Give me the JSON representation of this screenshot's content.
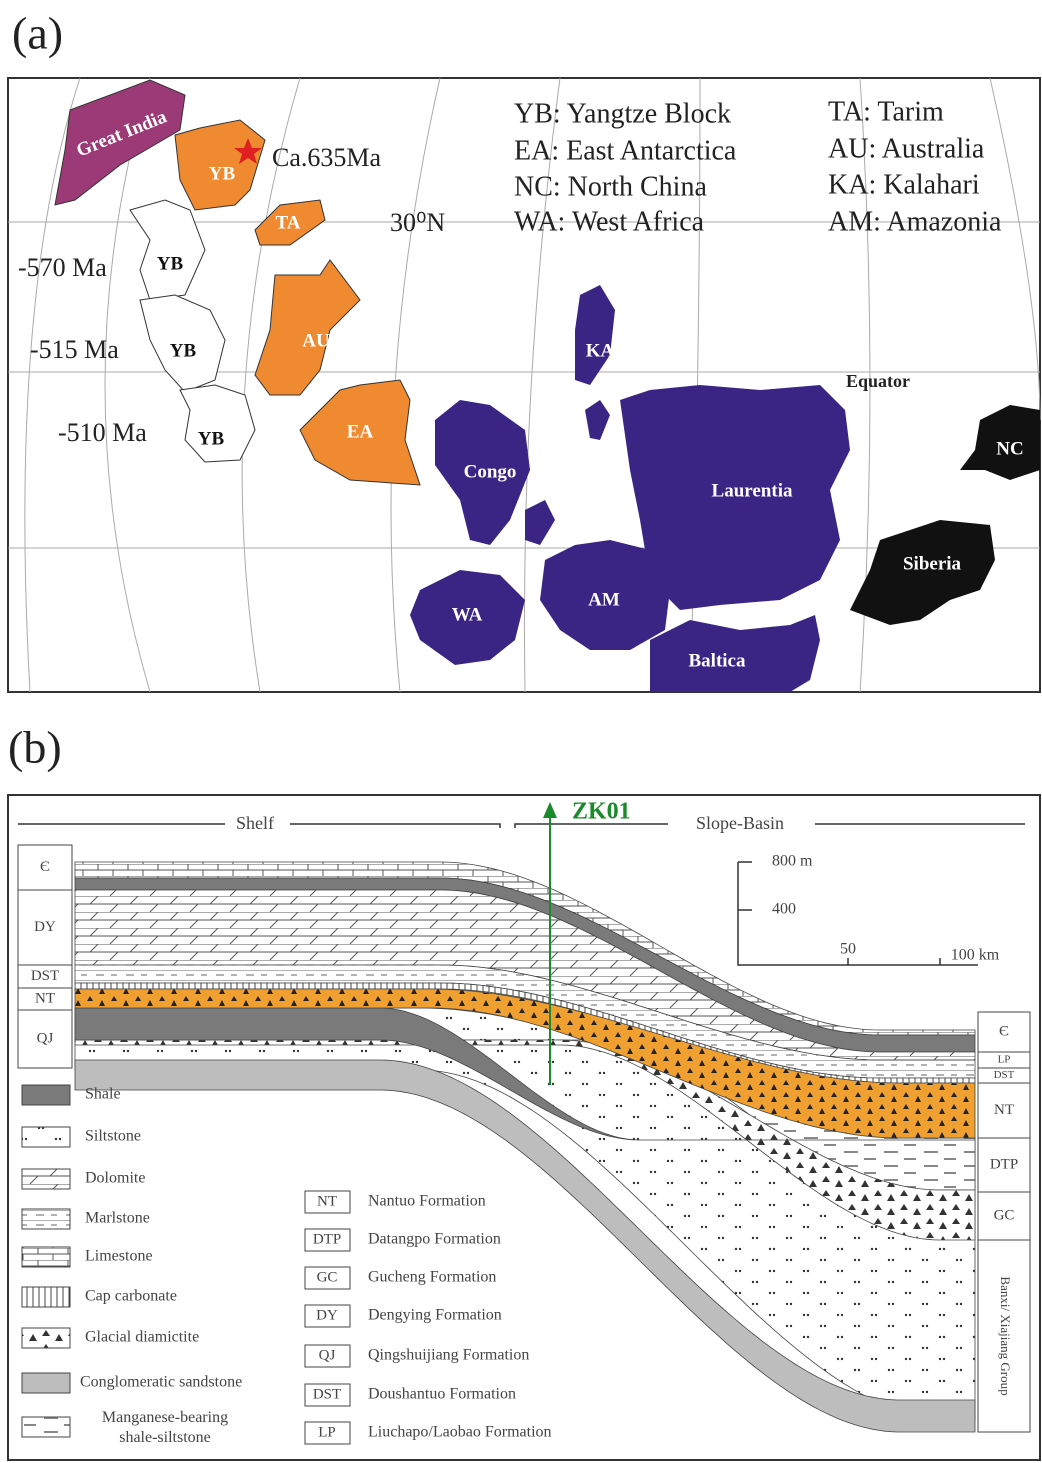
{
  "panel_a": {
    "label": "(a)",
    "map_labels": {
      "great_india": "Great India",
      "yb": "YB",
      "ta": "TA",
      "au": "AU",
      "ea": "EA",
      "ka": "KA",
      "congo": "Congo",
      "laurentia": "Laurentia",
      "wa": "WA",
      "am": "AM",
      "baltica": "Baltica",
      "siberia": "Siberia",
      "nc": "NC",
      "yb_570": "YB",
      "yb_515": "YB",
      "yb_510": "YB"
    },
    "annotations": {
      "age_635": "Ca.635Ma",
      "age_570": "-570 Ma",
      "age_515": "-515 Ma",
      "age_510": "-510 Ma",
      "latitude": "30⁰N",
      "equator": "Equator"
    },
    "legend": [
      "YB: Yangtze Block",
      "EA: East Antarctica",
      "NC: North China",
      "WA: West Africa",
      "TA: Tarim",
      "AU: Australia",
      "KA: Kalahari",
      "AM: Amazonia"
    ]
  },
  "panel_b": {
    "label": "(b)",
    "shelf": "Shelf",
    "slope_basin": "Slope-Basin",
    "borehole": "ZK01",
    "left_column": [
      "Є",
      "DY",
      "DST",
      "NT",
      "QJ"
    ],
    "right_column": [
      "Є",
      "LP",
      "DST",
      "NT",
      "DTP",
      "GC",
      "Banxi/ Xiajiang Group"
    ],
    "scale": {
      "vertical": [
        "800 m",
        "400"
      ],
      "horizontal": [
        "50",
        "100 km"
      ]
    },
    "lithology_legend": [
      "Shale",
      "Siltstone",
      "Dolomite",
      "Marlstone",
      "Limestone",
      "Cap carbonate",
      "Glacial diamictite",
      "Conglomeratic sandstone",
      "Manganese-bearing shale-siltstone"
    ],
    "formation_legend": [
      {
        "code": "NT",
        "name": "Nantuo Formation"
      },
      {
        "code": "DTP",
        "name": "Datangpo Formation"
      },
      {
        "code": "GC",
        "name": "Gucheng Formation"
      },
      {
        "code": "DY",
        "name": "Dengying Formation"
      },
      {
        "code": "QJ",
        "name": "Qingshuijiang Formation"
      },
      {
        "code": "DST",
        "name": "Doushantuo Formation"
      },
      {
        "code": "LP",
        "name": "Liuchapo/Laobao Formation"
      }
    ]
  }
}
